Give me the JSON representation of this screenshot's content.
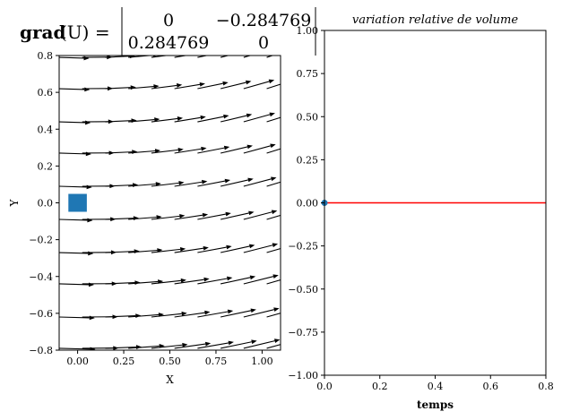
{
  "gradient_matrix": {
    "label_bold": "grad",
    "label_rest": "(U) =",
    "m11": "0",
    "m12": "−0.284769",
    "m21": "0.284769",
    "m22": "0"
  },
  "chart_data": [
    {
      "type": "quiver",
      "title": "",
      "xlabel": "X",
      "ylabel": "Y",
      "xlim": [
        -0.1,
        1.1
      ],
      "ylim": [
        -0.8,
        0.8
      ],
      "xticks": [
        "0.00",
        "0.25",
        "0.50",
        "0.75",
        "1.00"
      ],
      "yticks": [
        "−0.8",
        "−0.6",
        "−0.4",
        "−0.2",
        "0.0",
        "0.2",
        "0.4",
        "0.6",
        "0.8"
      ],
      "grad_matrix": [
        [
          0,
          -0.284769
        ],
        [
          0.284769,
          0
        ]
      ],
      "grid": {
        "x": [
          -0.1,
          0.025,
          0.15,
          0.275,
          0.4,
          0.525,
          0.65,
          0.775,
          0.9,
          1.025
        ],
        "y": [
          -0.79,
          -0.62,
          -0.44,
          -0.27,
          -0.09,
          0.09,
          0.27,
          0.44,
          0.62,
          0.79
        ]
      },
      "arrow_scale": 0.42,
      "square_marker": {
        "x": 0.0,
        "y": 0.0,
        "size": 0.1,
        "color": "#1f77b4"
      },
      "arrow_color": "#000000"
    },
    {
      "type": "line",
      "title": "variation relative de volume",
      "xlabel": "temps",
      "ylabel": "",
      "xlim": [
        0,
        0.8
      ],
      "ylim": [
        -1.0,
        1.0
      ],
      "xticks": [
        "0.0",
        "0.2",
        "0.4",
        "0.6",
        "0.8"
      ],
      "yticks": [
        "−1.00",
        "−0.75",
        "−0.50",
        "−0.25",
        "0.00",
        "0.25",
        "0.50",
        "0.75",
        "1.00"
      ],
      "series": [
        {
          "x": [
            0,
            0.8
          ],
          "y": [
            0,
            0
          ],
          "color": "#ff0000"
        }
      ],
      "points": [
        {
          "x": 0,
          "y": 0,
          "color": "#1f77b4"
        }
      ]
    }
  ]
}
